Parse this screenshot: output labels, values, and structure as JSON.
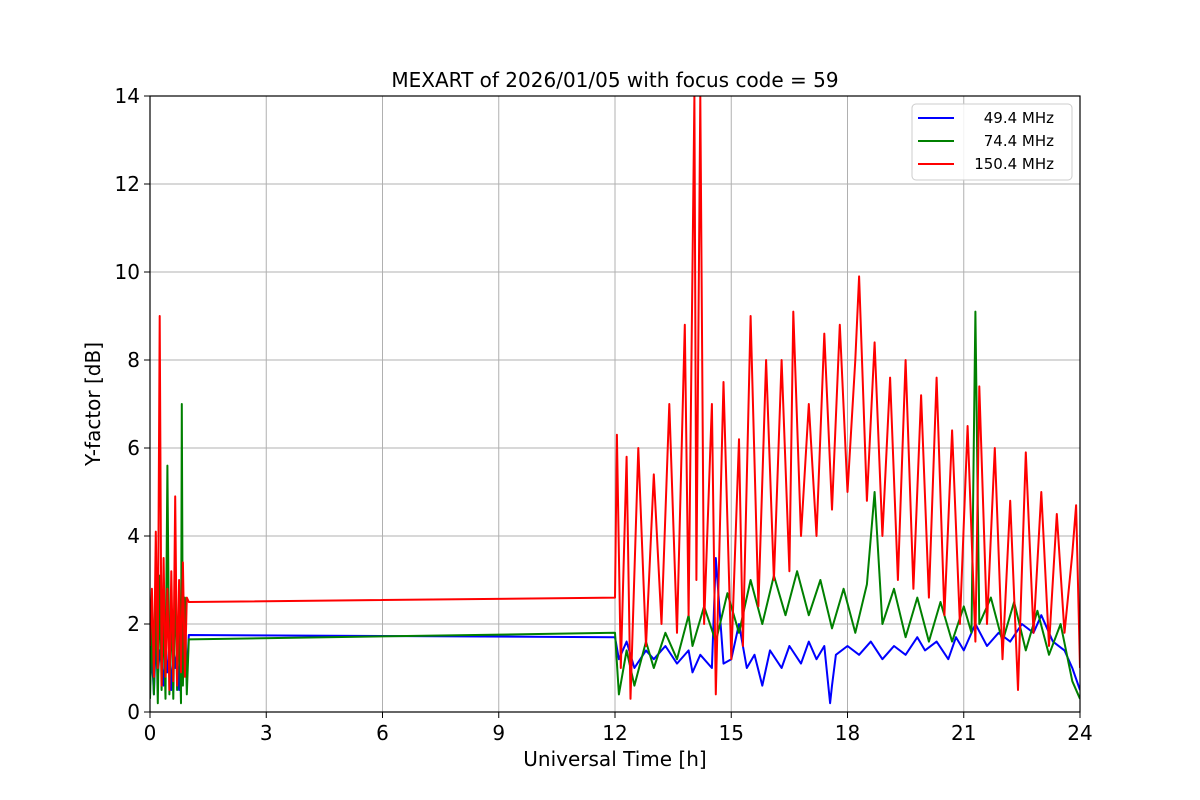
{
  "chart_data": {
    "type": "line",
    "title": "MEXART of 2026/01/05 with focus code = 59",
    "xlabel": "Universal Time [h]",
    "ylabel": "Y-factor [dB]",
    "xlim": [
      0,
      24
    ],
    "ylim": [
      0,
      14
    ],
    "xticks": [
      0,
      3,
      6,
      9,
      12,
      15,
      18,
      21,
      24
    ],
    "yticks": [
      0,
      2,
      4,
      6,
      8,
      10,
      12,
      14
    ],
    "grid": true,
    "legend_position": "top-right",
    "series": [
      {
        "name": "49.4 MHz",
        "color": "#0000ff",
        "points": [
          [
            0.0,
            0.6
          ],
          [
            0.05,
            1.3
          ],
          [
            0.1,
            0.4
          ],
          [
            0.15,
            1.6
          ],
          [
            0.2,
            0.8
          ],
          [
            0.25,
            1.4
          ],
          [
            0.3,
            1.1
          ],
          [
            0.35,
            0.6
          ],
          [
            0.4,
            1.6
          ],
          [
            0.45,
            0.9
          ],
          [
            0.5,
            1.3
          ],
          [
            0.55,
            0.5
          ],
          [
            0.6,
            1.5
          ],
          [
            0.65,
            1.0
          ],
          [
            0.7,
            1.4
          ],
          [
            0.75,
            0.5
          ],
          [
            0.8,
            1.7
          ],
          [
            0.85,
            1.0
          ],
          [
            0.9,
            1.3
          ],
          [
            0.95,
            0.8
          ],
          [
            1.0,
            1.75
          ],
          [
            12.0,
            1.7
          ],
          [
            12.1,
            1.2
          ],
          [
            12.3,
            1.6
          ],
          [
            12.5,
            1.0
          ],
          [
            12.8,
            1.4
          ],
          [
            13.0,
            1.2
          ],
          [
            13.3,
            1.5
          ],
          [
            13.6,
            1.1
          ],
          [
            13.9,
            1.4
          ],
          [
            14.0,
            0.9
          ],
          [
            14.2,
            1.3
          ],
          [
            14.5,
            1.0
          ],
          [
            14.6,
            3.5
          ],
          [
            14.8,
            1.1
          ],
          [
            15.0,
            1.2
          ],
          [
            15.2,
            2.0
          ],
          [
            15.4,
            1.0
          ],
          [
            15.6,
            1.3
          ],
          [
            15.8,
            0.6
          ],
          [
            16.0,
            1.4
          ],
          [
            16.3,
            1.0
          ],
          [
            16.5,
            1.5
          ],
          [
            16.8,
            1.1
          ],
          [
            17.0,
            1.6
          ],
          [
            17.2,
            1.2
          ],
          [
            17.4,
            1.5
          ],
          [
            17.55,
            0.2
          ],
          [
            17.6,
            0.6
          ],
          [
            17.7,
            1.3
          ],
          [
            18.0,
            1.5
          ],
          [
            18.3,
            1.3
          ],
          [
            18.6,
            1.6
          ],
          [
            18.9,
            1.2
          ],
          [
            19.2,
            1.5
          ],
          [
            19.5,
            1.3
          ],
          [
            19.8,
            1.7
          ],
          [
            20.0,
            1.4
          ],
          [
            20.3,
            1.6
          ],
          [
            20.6,
            1.2
          ],
          [
            20.8,
            1.7
          ],
          [
            21.0,
            1.4
          ],
          [
            21.3,
            2.0
          ],
          [
            21.6,
            1.5
          ],
          [
            21.9,
            1.8
          ],
          [
            22.2,
            1.6
          ],
          [
            22.5,
            2.0
          ],
          [
            22.8,
            1.8
          ],
          [
            23.0,
            2.2
          ],
          [
            23.3,
            1.6
          ],
          [
            23.6,
            1.4
          ],
          [
            23.8,
            1.0
          ],
          [
            24.0,
            0.5
          ]
        ]
      },
      {
        "name": "74.4 MHz",
        "color": "#008000",
        "points": [
          [
            0.0,
            0.3
          ],
          [
            0.05,
            2.0
          ],
          [
            0.1,
            0.4
          ],
          [
            0.15,
            2.6
          ],
          [
            0.2,
            0.2
          ],
          [
            0.25,
            3.1
          ],
          [
            0.3,
            0.5
          ],
          [
            0.35,
            2.2
          ],
          [
            0.4,
            0.3
          ],
          [
            0.45,
            5.6
          ],
          [
            0.5,
            0.4
          ],
          [
            0.55,
            2.5
          ],
          [
            0.6,
            0.3
          ],
          [
            0.65,
            3.2
          ],
          [
            0.7,
            0.5
          ],
          [
            0.75,
            2.0
          ],
          [
            0.8,
            0.2
          ],
          [
            0.82,
            7.0
          ],
          [
            0.85,
            0.6
          ],
          [
            0.9,
            2.6
          ],
          [
            0.95,
            0.4
          ],
          [
            1.0,
            1.65
          ],
          [
            12.0,
            1.8
          ],
          [
            12.1,
            0.4
          ],
          [
            12.3,
            1.4
          ],
          [
            12.5,
            0.6
          ],
          [
            12.8,
            1.6
          ],
          [
            13.0,
            1.0
          ],
          [
            13.3,
            1.8
          ],
          [
            13.6,
            1.2
          ],
          [
            13.9,
            2.2
          ],
          [
            14.0,
            1.5
          ],
          [
            14.3,
            2.4
          ],
          [
            14.6,
            1.6
          ],
          [
            14.9,
            2.7
          ],
          [
            15.2,
            1.8
          ],
          [
            15.5,
            3.0
          ],
          [
            15.8,
            2.0
          ],
          [
            16.1,
            3.1
          ],
          [
            16.4,
            2.2
          ],
          [
            16.7,
            3.2
          ],
          [
            17.0,
            2.2
          ],
          [
            17.3,
            3.0
          ],
          [
            17.6,
            1.9
          ],
          [
            17.9,
            2.8
          ],
          [
            18.2,
            1.8
          ],
          [
            18.5,
            2.9
          ],
          [
            18.7,
            5.0
          ],
          [
            18.9,
            2.0
          ],
          [
            19.2,
            2.8
          ],
          [
            19.5,
            1.7
          ],
          [
            19.8,
            2.6
          ],
          [
            20.1,
            1.6
          ],
          [
            20.4,
            2.5
          ],
          [
            20.7,
            1.6
          ],
          [
            21.0,
            2.4
          ],
          [
            21.2,
            1.8
          ],
          [
            21.3,
            9.1
          ],
          [
            21.4,
            2.0
          ],
          [
            21.7,
            2.6
          ],
          [
            22.0,
            1.6
          ],
          [
            22.3,
            2.5
          ],
          [
            22.6,
            1.4
          ],
          [
            22.9,
            2.3
          ],
          [
            23.2,
            1.3
          ],
          [
            23.5,
            2.0
          ],
          [
            23.8,
            0.7
          ],
          [
            24.0,
            0.3
          ]
        ]
      },
      {
        "name": "150.4 MHz",
        "color": "#ff0000",
        "points": [
          [
            0.0,
            1.5
          ],
          [
            0.05,
            2.8
          ],
          [
            0.1,
            0.8
          ],
          [
            0.15,
            4.1
          ],
          [
            0.2,
            1.0
          ],
          [
            0.25,
            9.0
          ],
          [
            0.3,
            0.6
          ],
          [
            0.35,
            3.5
          ],
          [
            0.4,
            0.8
          ],
          [
            0.45,
            2.8
          ],
          [
            0.5,
            0.5
          ],
          [
            0.55,
            3.2
          ],
          [
            0.6,
            0.7
          ],
          [
            0.65,
            4.9
          ],
          [
            0.7,
            0.6
          ],
          [
            0.75,
            3.0
          ],
          [
            0.8,
            0.9
          ],
          [
            0.85,
            3.4
          ],
          [
            0.9,
            0.8
          ],
          [
            0.95,
            2.6
          ],
          [
            1.0,
            2.5
          ],
          [
            12.0,
            2.6
          ],
          [
            12.05,
            6.3
          ],
          [
            12.15,
            1.0
          ],
          [
            12.3,
            5.8
          ],
          [
            12.4,
            0.3
          ],
          [
            12.6,
            6.0
          ],
          [
            12.8,
            1.5
          ],
          [
            13.0,
            5.4
          ],
          [
            13.2,
            2.0
          ],
          [
            13.4,
            7.0
          ],
          [
            13.6,
            1.8
          ],
          [
            13.8,
            8.8
          ],
          [
            13.9,
            2.2
          ],
          [
            14.05,
            14.0
          ],
          [
            14.1,
            3.0
          ],
          [
            14.2,
            14.0
          ],
          [
            14.3,
            2.0
          ],
          [
            14.5,
            7.0
          ],
          [
            14.6,
            0.4
          ],
          [
            14.8,
            7.5
          ],
          [
            15.0,
            1.2
          ],
          [
            15.2,
            6.2
          ],
          [
            15.3,
            1.5
          ],
          [
            15.5,
            9.0
          ],
          [
            15.7,
            2.4
          ],
          [
            15.9,
            8.0
          ],
          [
            16.1,
            3.0
          ],
          [
            16.3,
            8.0
          ],
          [
            16.5,
            3.2
          ],
          [
            16.6,
            9.1
          ],
          [
            16.8,
            4.0
          ],
          [
            17.0,
            7.0
          ],
          [
            17.2,
            4.0
          ],
          [
            17.4,
            8.6
          ],
          [
            17.6,
            4.6
          ],
          [
            17.8,
            8.8
          ],
          [
            18.0,
            5.0
          ],
          [
            18.2,
            8.0
          ],
          [
            18.3,
            9.9
          ],
          [
            18.5,
            4.8
          ],
          [
            18.7,
            8.4
          ],
          [
            18.9,
            4.0
          ],
          [
            19.1,
            7.6
          ],
          [
            19.3,
            3.0
          ],
          [
            19.5,
            8.0
          ],
          [
            19.7,
            2.8
          ],
          [
            19.9,
            7.2
          ],
          [
            20.1,
            2.6
          ],
          [
            20.3,
            7.6
          ],
          [
            20.5,
            2.2
          ],
          [
            20.7,
            6.4
          ],
          [
            20.9,
            2.0
          ],
          [
            21.1,
            6.5
          ],
          [
            21.3,
            1.6
          ],
          [
            21.4,
            7.4
          ],
          [
            21.6,
            2.0
          ],
          [
            21.8,
            6.0
          ],
          [
            22.0,
            1.2
          ],
          [
            22.2,
            4.8
          ],
          [
            22.4,
            0.5
          ],
          [
            22.6,
            5.9
          ],
          [
            22.8,
            1.8
          ],
          [
            23.0,
            5.0
          ],
          [
            23.2,
            1.5
          ],
          [
            23.4,
            4.5
          ],
          [
            23.6,
            1.8
          ],
          [
            23.8,
            3.6
          ],
          [
            23.9,
            4.7
          ],
          [
            24.0,
            1.0
          ]
        ]
      }
    ]
  }
}
